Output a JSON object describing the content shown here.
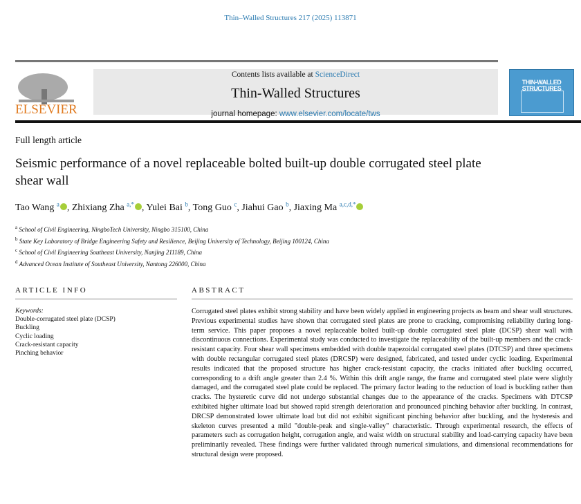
{
  "header": {
    "citation": "Thin–Walled Structures 217 (2025) 113871",
    "contents_prefix": "Contents lists available at ",
    "contents_link": "ScienceDirect",
    "journal_title": "Thin-Walled Structures",
    "homepage_prefix": "journal homepage: ",
    "homepage_link": "www.elsevier.com/locate/tws",
    "publisher_logo": "ELSEVIER",
    "cover_title": "THIN-WALLED STRUCTURES"
  },
  "article": {
    "type": "Full length article",
    "title": "Seismic performance of a novel replaceable bolted built-up double corrugated steel plate shear wall",
    "authors": [
      {
        "name": "Tao Wang",
        "sup": "a",
        "orcid": true
      },
      {
        "name": "Zhixiang Zha",
        "sup": "a,*",
        "orcid": true
      },
      {
        "name": "Yulei Bai",
        "sup": "b",
        "orcid": false
      },
      {
        "name": "Tong Guo",
        "sup": "c",
        "orcid": false
      },
      {
        "name": "Jiahui Gao",
        "sup": "b",
        "orcid": false
      },
      {
        "name": "Jiaxing Ma",
        "sup": "a,c,d,*",
        "orcid": true
      }
    ],
    "affiliations": [
      {
        "sup": "a",
        "text": "School of Civil Engineering, NingboTech University, Ningbo 315100, China"
      },
      {
        "sup": "b",
        "text": "State Key Laboratory of Bridge Engineering Safety and Resilience, Beijing University of Technology, Beijing 100124, China"
      },
      {
        "sup": "c",
        "text": "School of Civil Engineering Southeast University, Nanjing 211189, China"
      },
      {
        "sup": "d",
        "text": "Advanced Ocean Institute of Southeast University, Nantong 226000, China"
      }
    ]
  },
  "info": {
    "heading": "ARTICLE INFO",
    "keywords_label": "Keywords:",
    "keywords": [
      "Double-corrugated steel plate (DCSP)",
      "Buckling",
      "Cyclic loading",
      "Crack-resistant capacity",
      "Pinching behavior"
    ]
  },
  "abstract": {
    "heading": "ABSTRACT",
    "text": "Corrugated steel plates exhibit strong stability and have been widely applied in engineering projects as beam and shear wall structures. Previous experimental studies have shown that corrugated steel plates are prone to cracking, compromising reliability during long-term service. This paper proposes a novel replaceable bolted built-up double corrugated steel plate (DCSP) shear wall with discontinuous connections. Experimental study was conducted to investigate the replaceability of the built-up members and the crack-resistant capacity. Four shear wall specimens embedded with double trapezoidal corrugated steel plates (DTCSP) and three specimens with double rectangular corrugated steel plates (DRCSP) were designed, fabricated, and tested under cyclic loading. Experimental results indicated that the proposed structure has higher crack-resistant capacity, the cracks initiated after buckling occurred, corresponding to a drift angle greater than 2.4 %. Within this drift angle range, the frame and corrugated steel plate were slightly damaged, and the corrugated steel plate could be replaced. The primary factor leading to the reduction of load is buckling rather than cracks. The hysteretic curve did not undergo substantial changes due to the appearance of the cracks. Specimens with DTCSP exhibited higher ultimate load but showed rapid strength deterioration and pronounced pinching behavior after buckling. In contrast, DRCSP demonstrated lower ultimate load but did not exhibit significant pinching behavior after buckling, and the hysteresis and skeleton curves presented a mild \"double-peak and single-valley\" characteristic. Through experimental research, the effects of parameters such as corrugation height, corrugation angle, and waist width on structural stability and load-carrying capacity have been preliminarily revealed. These findings were further validated through numerical simulations, and dimensional recommendations for structural design were proposed."
  },
  "colors": {
    "link": "#2a7ab0",
    "elsevier": "#e07a1f",
    "orcid": "#a6ce39",
    "cover": "#4b9bd0"
  }
}
